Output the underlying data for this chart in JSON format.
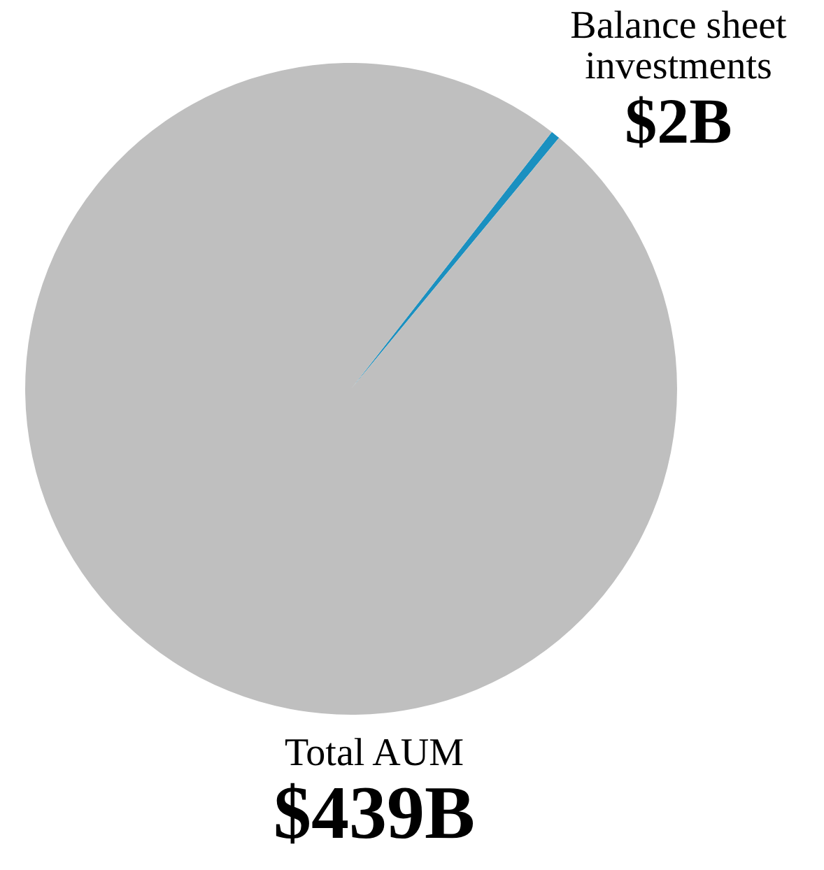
{
  "chart_data": {
    "type": "pie",
    "categories": [
      "Balance sheet investments",
      "Total AUM"
    ],
    "values": [
      2,
      439
    ],
    "value_labels": [
      "$2B",
      "$439B"
    ],
    "colors": [
      "#1a90c0",
      "#bfbfbf"
    ]
  }
}
